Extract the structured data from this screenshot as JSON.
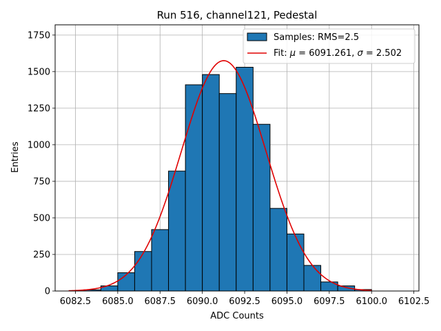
{
  "chart_data": {
    "type": "bar",
    "title": "Run 516, channel121, Pedestal",
    "xlabel": "ADC Counts",
    "ylabel": "Entries",
    "xlim": [
      6081.3,
      6102.8
    ],
    "ylim": [
      0,
      1820
    ],
    "xticks": [
      6082.5,
      6085.0,
      6087.5,
      6090.0,
      6092.5,
      6095.0,
      6097.5,
      6100.0,
      6102.5
    ],
    "xtick_labels": [
      "6082.5",
      "6085.0",
      "6087.5",
      "6090.0",
      "6092.5",
      "6095.0",
      "6097.5",
      "6100.0",
      "6102.5"
    ],
    "yticks": [
      0,
      250,
      500,
      750,
      1000,
      1250,
      1500,
      1750
    ],
    "ytick_labels": [
      "0",
      "250",
      "500",
      "750",
      "1000",
      "1250",
      "1500",
      "1750"
    ],
    "grid": true,
    "legend_position": "top-right",
    "histogram": {
      "name": "Samples: RMS=2.5",
      "bin_edges": [
        6083,
        6084,
        6085,
        6086,
        6087,
        6088,
        6089,
        6090,
        6091,
        6092,
        6093,
        6094,
        6095,
        6096,
        6097,
        6098,
        6099,
        6100
      ],
      "counts": [
        8,
        35,
        125,
        270,
        420,
        820,
        1410,
        1480,
        1350,
        1530,
        1140,
        565,
        390,
        175,
        62,
        35,
        10
      ],
      "color": "#1f77b4",
      "edgecolor": "#000000"
    },
    "fit": {
      "name": "Fit: $\\mu$ = 6091.261, $\\sigma$ = 2.502",
      "mu": 6091.261,
      "sigma": 2.502,
      "amplitude": 1575,
      "x_range": [
        6082.1,
        6100.0
      ],
      "color": "#e00000"
    }
  }
}
